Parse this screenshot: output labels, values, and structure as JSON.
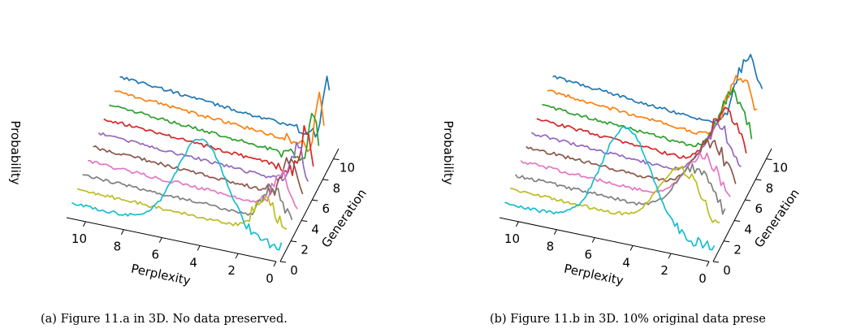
{
  "chart_data": [
    {
      "type": "line",
      "subtype": "3d-waterfall",
      "caption": "(a) Figure 11.a in 3D. No data preserved.",
      "xlabel": "Perplexity",
      "ylabel": "Generation",
      "zlabel": "Probability",
      "x_ticks": [
        "10",
        "8",
        "6",
        "4",
        "2",
        "0"
      ],
      "y_ticks": [
        "0",
        "2",
        "4",
        "6",
        "8",
        "10"
      ],
      "xlim": [
        0,
        11
      ],
      "ylim": [
        0,
        11
      ],
      "series": [
        {
          "color": "#1f77b4",
          "baseline": 1.0,
          "peak_x": 0.15,
          "peak_h": 0.62,
          "width": 0.18
        },
        {
          "color": "#ff7f0e",
          "baseline": 0.9,
          "peak_x": 0.22,
          "peak_h": 0.55,
          "width": 0.2
        },
        {
          "color": "#2ca02c",
          "baseline": 0.8,
          "peak_x": 0.3,
          "peak_h": 0.5,
          "width": 0.22
        },
        {
          "color": "#d62728",
          "baseline": 0.7,
          "peak_x": 0.4,
          "peak_h": 0.45,
          "width": 0.25
        },
        {
          "color": "#9467bd",
          "baseline": 0.6,
          "peak_x": 0.55,
          "peak_h": 0.4,
          "width": 0.3
        },
        {
          "color": "#8c564b",
          "baseline": 0.5,
          "peak_x": 0.7,
          "peak_h": 0.38,
          "width": 0.35
        },
        {
          "color": "#e377c2",
          "baseline": 0.4,
          "peak_x": 0.85,
          "peak_h": 0.36,
          "width": 0.4
        },
        {
          "color": "#7f7f7f",
          "baseline": 0.3,
          "peak_x": 1.0,
          "peak_h": 0.35,
          "width": 0.45
        },
        {
          "color": "#bcbd22",
          "baseline": 0.2,
          "peak_x": 1.15,
          "peak_h": 0.34,
          "width": 0.55
        },
        {
          "color": "#17becf",
          "baseline": 0.1,
          "peak_x": 4.2,
          "peak_h": 0.95,
          "width": 1.3
        }
      ]
    },
    {
      "type": "line",
      "subtype": "3d-waterfall",
      "caption": "(b) Figure 11.b in 3D. 10% original data prese",
      "xlabel": "Perplexity",
      "ylabel": "Generation",
      "zlabel": "Probability",
      "x_ticks": [
        "10",
        "8",
        "6",
        "4",
        "2",
        "0"
      ],
      "y_ticks": [
        "0",
        "2",
        "4",
        "6",
        "8",
        "10"
      ],
      "xlim": [
        0,
        11
      ],
      "ylim": [
        0,
        11
      ],
      "series": [
        {
          "color": "#1f77b4",
          "baseline": 1.0,
          "peak_x": 0.7,
          "peak_h": 0.8,
          "width": 0.65
        },
        {
          "color": "#ff7f0e",
          "baseline": 0.9,
          "peak_x": 0.85,
          "peak_h": 0.72,
          "width": 0.7
        },
        {
          "color": "#2ca02c",
          "baseline": 0.8,
          "peak_x": 0.95,
          "peak_h": 0.66,
          "width": 0.75
        },
        {
          "color": "#d62728",
          "baseline": 0.7,
          "peak_x": 1.05,
          "peak_h": 0.6,
          "width": 0.8
        },
        {
          "color": "#9467bd",
          "baseline": 0.6,
          "peak_x": 1.15,
          "peak_h": 0.55,
          "width": 0.85
        },
        {
          "color": "#8c564b",
          "baseline": 0.5,
          "peak_x": 1.3,
          "peak_h": 0.52,
          "width": 0.9
        },
        {
          "color": "#e377c2",
          "baseline": 0.4,
          "peak_x": 1.45,
          "peak_h": 0.5,
          "width": 0.95
        },
        {
          "color": "#7f7f7f",
          "baseline": 0.3,
          "peak_x": 1.6,
          "peak_h": 0.5,
          "width": 1.0
        },
        {
          "color": "#bcbd22",
          "baseline": 0.2,
          "peak_x": 2.1,
          "peak_h": 0.6,
          "width": 1.1
        },
        {
          "color": "#17becf",
          "baseline": 0.1,
          "peak_x": 4.6,
          "peak_h": 1.05,
          "width": 1.3
        }
      ]
    }
  ]
}
